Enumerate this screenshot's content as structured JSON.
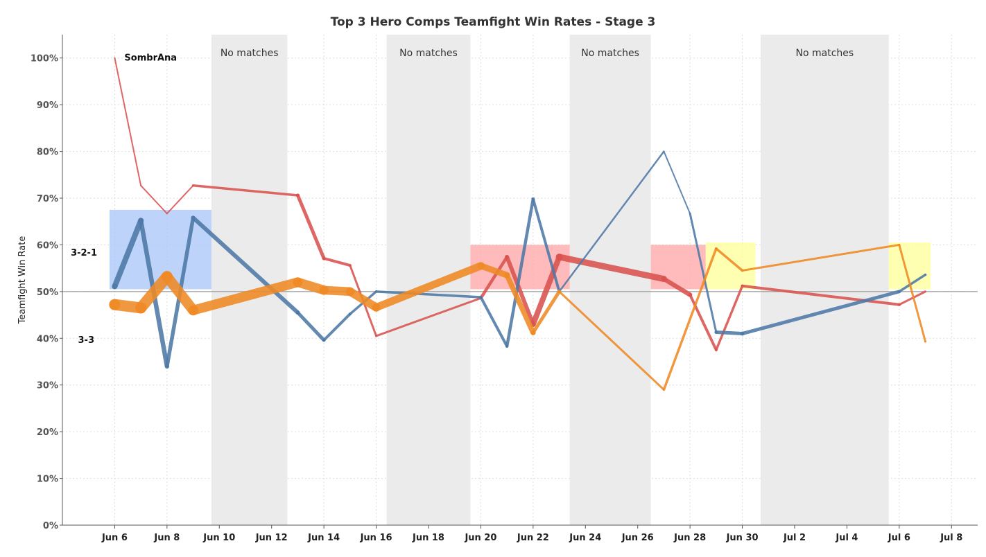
{
  "chart_data": {
    "type": "line",
    "title": "Top 3 Hero Comps Teamfight Win Rates - Stage 3",
    "ylabel": "Teamfight Win Rate",
    "xlabel": "",
    "x_range": [
      "2020-06-04",
      "2020-07-09"
    ],
    "ylim": [
      0,
      1.05
    ],
    "y_ticks": [
      0,
      0.1,
      0.2,
      0.3,
      0.4,
      0.5,
      0.6,
      0.7,
      0.8,
      0.9,
      1.0
    ],
    "y_tick_labels": [
      "0%",
      "10%",
      "20%",
      "30%",
      "40%",
      "50%",
      "60%",
      "70%",
      "80%",
      "90%",
      "100%"
    ],
    "x_ticks": [
      "2020-06-06",
      "2020-06-08",
      "2020-06-10",
      "2020-06-12",
      "2020-06-14",
      "2020-06-16",
      "2020-06-18",
      "2020-06-20",
      "2020-06-22",
      "2020-06-24",
      "2020-06-26",
      "2020-06-28",
      "2020-06-30",
      "2020-07-02",
      "2020-07-04",
      "2020-07-06",
      "2020-07-08"
    ],
    "x_tick_labels": [
      "Jun 6",
      "Jun 8",
      "Jun 10",
      "Jun 12",
      "Jun 14",
      "Jun 16",
      "Jun 18",
      "Jun 20",
      "Jun 22",
      "Jun 24",
      "Jun 26",
      "Jun 28",
      "Jun 30",
      "Jul 2",
      "Jul 4",
      "Jul 6",
      "Jul 8"
    ],
    "reference_line": 0.5,
    "grid": true,
    "no_match_periods": [
      {
        "start": "2020-06-09.7",
        "end": "2020-06-12.6",
        "label": "No matches"
      },
      {
        "start": "2020-06-16.4",
        "end": "2020-06-19.6",
        "label": "No matches"
      },
      {
        "start": "2020-06-23.4",
        "end": "2020-06-26.5",
        "label": "No matches"
      },
      {
        "start": "2020-06-30.7",
        "end": "2020-07-05.6",
        "label": "No matches"
      }
    ],
    "highlights": [
      {
        "start": "2020-06-05.8",
        "end": "2020-06-09.7",
        "y0": 0.505,
        "y1": 0.675,
        "color": "#adc8f7"
      },
      {
        "start": "2020-06-19.6",
        "end": "2020-06-23.4",
        "y0": 0.505,
        "y1": 0.6,
        "color": "#ffaaaa"
      },
      {
        "start": "2020-06-26.5",
        "end": "2020-06-28.6",
        "y0": 0.505,
        "y1": 0.6,
        "color": "#ffaaaa"
      },
      {
        "start": "2020-06-28.6",
        "end": "2020-06-30.5",
        "y0": 0.505,
        "y1": 0.605,
        "color": "#ffff9e"
      },
      {
        "start": "2020-07-05.6",
        "end": "2020-07-07.2",
        "y0": 0.505,
        "y1": 0.605,
        "color": "#ffff9e"
      }
    ],
    "series": [
      {
        "name": "SombrAna",
        "color": "#d9534f",
        "x": [
          "2020-06-06",
          "2020-06-07",
          "2020-06-08",
          "2020-06-09",
          "2020-06-13",
          "2020-06-14",
          "2020-06-15",
          "2020-06-16",
          "2020-06-20",
          "2020-06-21",
          "2020-06-22",
          "2020-06-23",
          "2020-06-27",
          "2020-06-28",
          "2020-06-29",
          "2020-06-30",
          "2020-07-06",
          "2020-07-07"
        ],
        "values": [
          1.0,
          0.727,
          0.667,
          0.727,
          0.706,
          0.571,
          0.556,
          0.405,
          0.486,
          0.574,
          0.43,
          0.574,
          0.527,
          0.493,
          0.375,
          0.512,
          0.472,
          0.5
        ],
        "widths": [
          2,
          2,
          2,
          2,
          5,
          5,
          3,
          3,
          3,
          6,
          6,
          10,
          8,
          5,
          3,
          4,
          4,
          2
        ]
      },
      {
        "name": "3-2-1",
        "color": "#4e79a7",
        "x": [
          "2020-06-06",
          "2020-06-07",
          "2020-06-08",
          "2020-06-09",
          "2020-06-13",
          "2020-06-14",
          "2020-06-15",
          "2020-06-16",
          "2020-06-20",
          "2020-06-21",
          "2020-06-22",
          "2020-06-23",
          "2020-06-27",
          "2020-06-28",
          "2020-06-29",
          "2020-06-30",
          "2020-07-06",
          "2020-07-07"
        ],
        "values": [
          0.511,
          0.652,
          0.34,
          0.658,
          0.455,
          0.396,
          0.452,
          0.5,
          0.488,
          0.383,
          0.698,
          0.5,
          0.8,
          0.667,
          0.413,
          0.41,
          0.5,
          0.536
        ],
        "widths": [
          8,
          8,
          5,
          6,
          6,
          4,
          4,
          3,
          4,
          4,
          5,
          3,
          2,
          2,
          4,
          6,
          4,
          3
        ]
      },
      {
        "name": "3-3",
        "color": "#ef8a25",
        "x": [
          "2020-06-06",
          "2020-06-07",
          "2020-06-08",
          "2020-06-09",
          "2020-06-13",
          "2020-06-14",
          "2020-06-15",
          "2020-06-16",
          "2020-06-20",
          "2020-06-21",
          "2020-06-22",
          "2020-06-23",
          "2020-06-27",
          "2020-06-29",
          "2020-06-30",
          "2020-07-06",
          "2020-07-07"
        ],
        "values": [
          0.472,
          0.465,
          0.532,
          0.46,
          0.52,
          0.503,
          0.5,
          0.466,
          0.555,
          0.535,
          0.412,
          0.5,
          0.29,
          0.592,
          0.545,
          0.6,
          0.393
        ],
        "widths": [
          16,
          16,
          16,
          14,
          14,
          13,
          12,
          12,
          10,
          8,
          7,
          3,
          3,
          4,
          3,
          3,
          3
        ]
      }
    ]
  }
}
